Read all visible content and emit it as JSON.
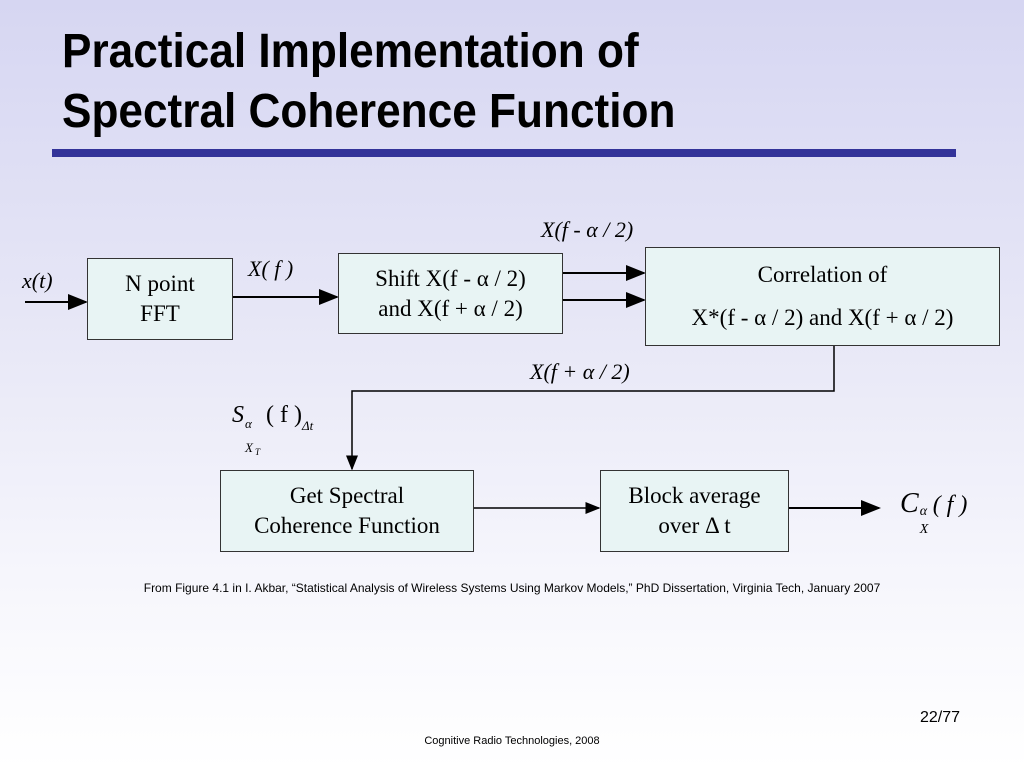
{
  "slide": {
    "title_line1": "Practical Implementation of",
    "title_line2": "Spectral Coherence Function",
    "accent_color": "#333399",
    "caption": "From Figure 4.1 in I. Akbar, “Statistical Analysis of Wireless Systems Using Markov Models,” PhD Dissertation, Virginia Tech, January 2007",
    "page_number": "22/77",
    "footer": "Cognitive Radio Technologies, 2008"
  },
  "diagram": {
    "input_label": "x(t)",
    "fft_box": {
      "line1": "N point",
      "line2": "FFT"
    },
    "fft_output_label": "X( f )",
    "shift_box": {
      "line1": "Shift X(f - α / 2)",
      "line2": "and   X(f + α / 2)"
    },
    "top_label": "X(f - α / 2)",
    "correlation_box": {
      "line1": "Correlation of",
      "line2": "X*(f - α / 2) and X(f + α / 2)"
    },
    "bottom_label": "X(f  + α / 2)",
    "spectral_label": "S^α_{X_T} ( f )_Δt",
    "spectral_label_parts": {
      "S": "S",
      "sup": "α",
      "sub": "X",
      "subsub": "T",
      "mid": "( f )",
      "tail": "Δt"
    },
    "coherence_box": {
      "line1": "Get Spectral",
      "line2": "Coherence Function"
    },
    "block_box": {
      "line1": "Block average",
      "line2": "over  Δ t"
    },
    "output_label_parts": {
      "C": "C",
      "sup": "α",
      "sub": "X",
      "tail": "( f )"
    }
  }
}
